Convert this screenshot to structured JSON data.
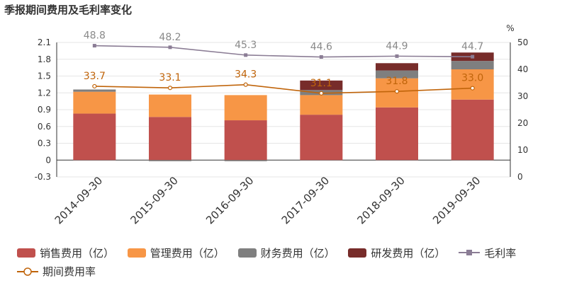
{
  "title": "季报期间费用及毛利率变化",
  "colors": {
    "sales": "#c0504d",
    "admin": "#f79646",
    "finance": "#7f7f7f",
    "rd": "#772c2a",
    "gross": "#8b7d95",
    "period": "#c0640a"
  },
  "chart_data": {
    "type": "bar",
    "stacked": true,
    "categories": [
      "2014-09-30",
      "2015-09-30",
      "2016-09-30",
      "2017-09-30",
      "2018-09-30",
      "2019-09-30"
    ],
    "series": [
      {
        "name": "销售费用（亿）",
        "key": "sales",
        "axis": "left",
        "values": [
          0.83,
          0.77,
          0.71,
          0.81,
          0.94,
          1.08
        ]
      },
      {
        "name": "管理费用（亿）",
        "key": "admin",
        "axis": "left",
        "values": [
          0.39,
          0.4,
          0.45,
          0.35,
          0.52,
          0.54
        ]
      },
      {
        "name": "财务费用（亿）",
        "key": "finance",
        "axis": "left",
        "values": [
          0.04,
          -0.02,
          -0.02,
          0.09,
          0.14,
          0.15
        ]
      },
      {
        "name": "研发费用（亿）",
        "key": "rd",
        "axis": "left",
        "values": [
          0,
          0,
          0,
          0.17,
          0.13,
          0.15
        ]
      }
    ],
    "lines": [
      {
        "name": "毛利率",
        "key": "gross",
        "axis": "right",
        "values": [
          48.8,
          48.2,
          45.3,
          44.6,
          44.9,
          44.7
        ],
        "labels": [
          "48.8",
          "48.2",
          "45.3",
          "44.6",
          "44.9",
          "44.7"
        ]
      },
      {
        "name": "期间费用率",
        "key": "period",
        "axis": "right",
        "values": [
          33.7,
          33.1,
          34.3,
          31.1,
          31.8,
          33.0
        ],
        "labels": [
          "33.7",
          "33.1",
          "34.3",
          "31.1",
          "31.8",
          "33.0"
        ]
      }
    ],
    "left_axis": {
      "min": -0.3,
      "max": 2.1,
      "ticks": [
        "-0.3",
        "0",
        "0.3",
        "0.6",
        "0.9",
        "1.2",
        "1.5",
        "1.8",
        "2.1"
      ]
    },
    "right_axis": {
      "unit": "%",
      "min": 0,
      "max": 50,
      "ticks": [
        "0",
        "10",
        "20",
        "30",
        "40",
        "50"
      ]
    },
    "legend_position": "bottom"
  }
}
